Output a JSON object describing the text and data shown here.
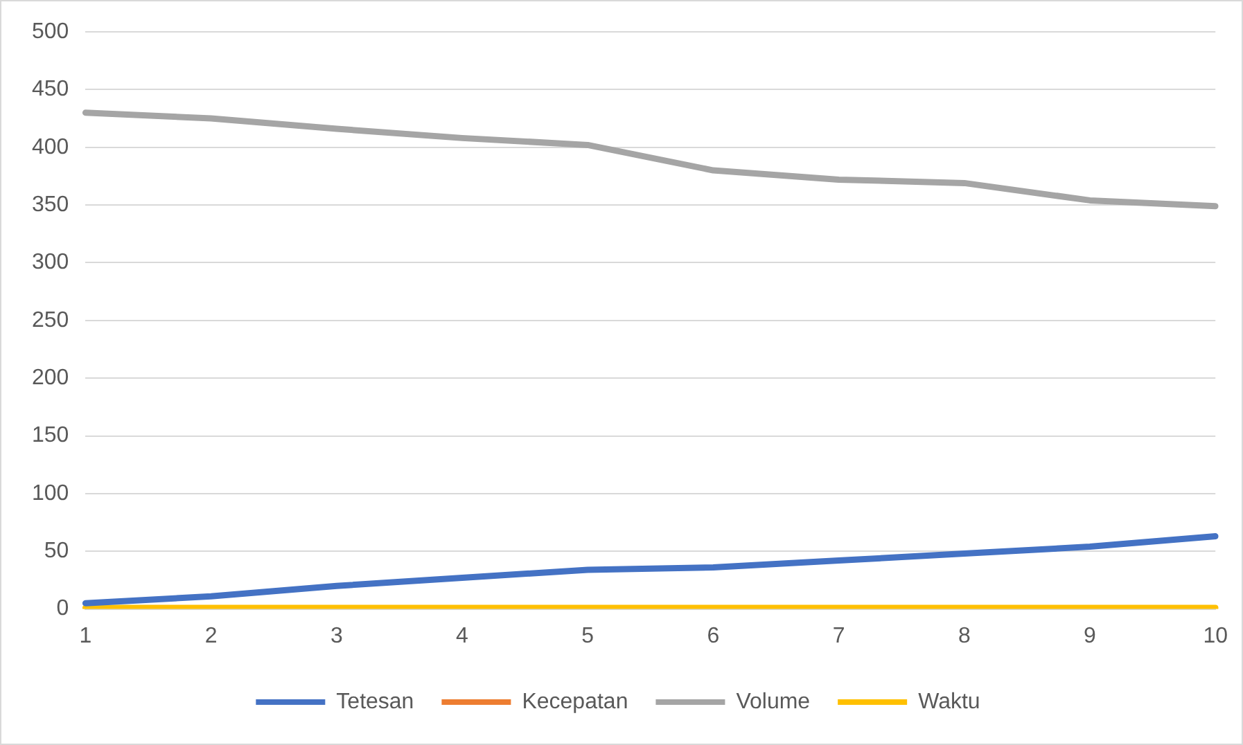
{
  "chart_data": {
    "type": "line",
    "categories": [
      "1",
      "2",
      "3",
      "4",
      "5",
      "6",
      "7",
      "8",
      "9",
      "10"
    ],
    "series": [
      {
        "name": "Tetesan",
        "color": "#4472c4",
        "values": [
          5,
          11,
          20,
          27,
          34,
          36,
          42,
          48,
          54,
          63
        ]
      },
      {
        "name": "Kecepatan",
        "color": "#ed7d31",
        "values": [
          null,
          null,
          null,
          null,
          null,
          null,
          null,
          null,
          null,
          null
        ]
      },
      {
        "name": "Volume",
        "color": "#a5a5a5",
        "values": [
          430,
          425,
          416,
          408,
          402,
          380,
          372,
          369,
          354,
          349
        ]
      },
      {
        "name": "Waktu",
        "color": "#ffc000",
        "values": [
          1,
          1,
          1,
          1,
          1,
          1,
          1,
          1,
          1,
          1
        ]
      }
    ],
    "ylim": [
      0,
      500
    ],
    "yticks": [
      0,
      50,
      100,
      150,
      200,
      250,
      300,
      350,
      400,
      450,
      500
    ],
    "grid": "y",
    "legend": "bottom",
    "marker": "none",
    "line_style": "solid"
  }
}
